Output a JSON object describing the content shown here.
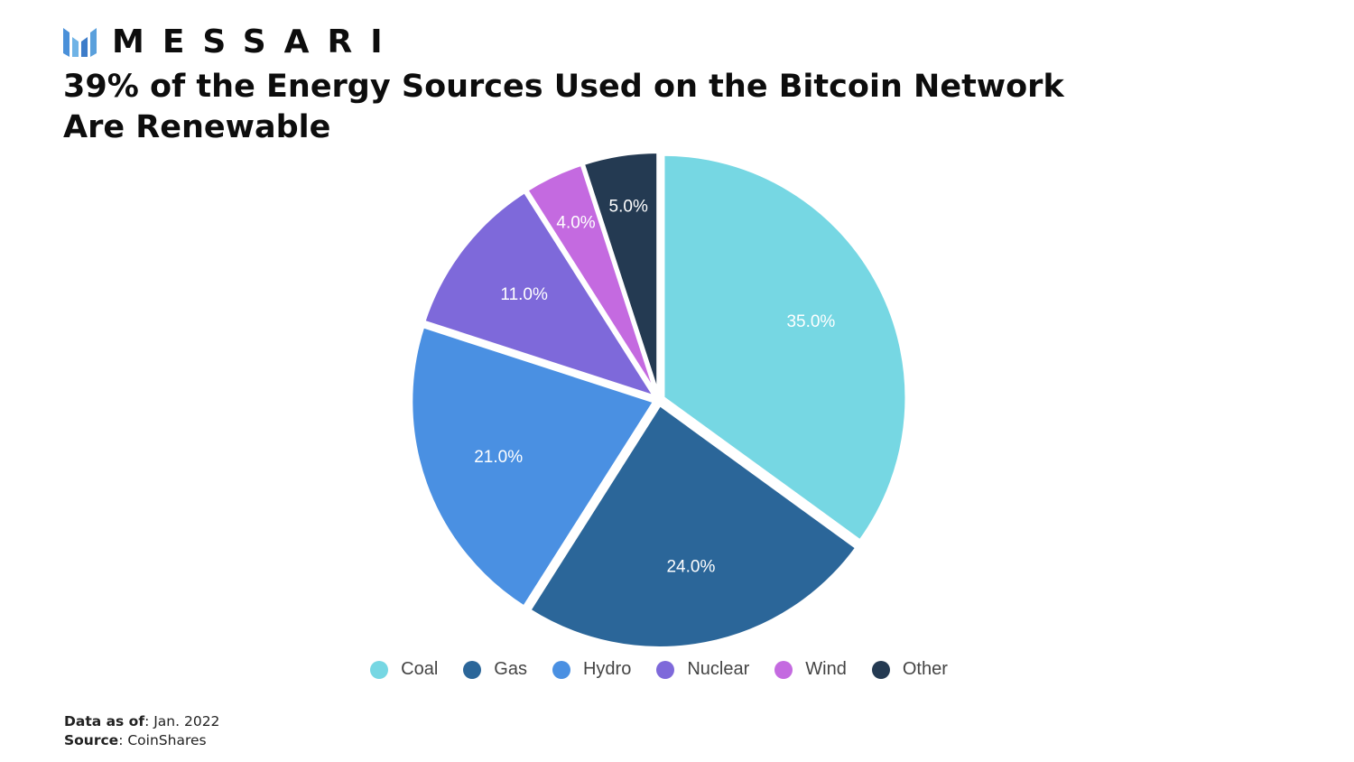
{
  "brand": {
    "name": "MESSARI",
    "logo_icon": "messari-logo-icon",
    "logo_color": "#4a90d9"
  },
  "chart_data": {
    "type": "pie",
    "title_lines": [
      "39% of the Energy Sources Used on the Bitcoin Network",
      "Are Renewable"
    ],
    "slices": [
      {
        "name": "Coal",
        "value": 35.0,
        "label": "35.0%",
        "color": "#76d7e3",
        "label_color": "#ffffff"
      },
      {
        "name": "Gas",
        "value": 24.0,
        "label": "24.0%",
        "color": "#2b6699",
        "label_color": "#ffffff"
      },
      {
        "name": "Hydro",
        "value": 21.0,
        "label": "21.0%",
        "color": "#4a90e2",
        "label_color": "#ffffff"
      },
      {
        "name": "Nuclear",
        "value": 11.0,
        "label": "11.0%",
        "color": "#7e69da",
        "label_color": "#ffffff"
      },
      {
        "name": "Wind",
        "value": 4.0,
        "label": "4.0%",
        "color": "#c46ae0",
        "label_color": "#ffffff"
      },
      {
        "name": "Other",
        "value": 5.0,
        "label": "5.0%",
        "color": "#243a52",
        "label_color": "#ffffff"
      }
    ],
    "start_angle": "12 o'clock",
    "direction": "clockwise",
    "legend_position": "bottom"
  },
  "footer": {
    "data_as_of_label": "Data as of",
    "data_as_of_value": ": Jan. 2022",
    "source_label": "Source",
    "source_value": ": CoinShares"
  }
}
